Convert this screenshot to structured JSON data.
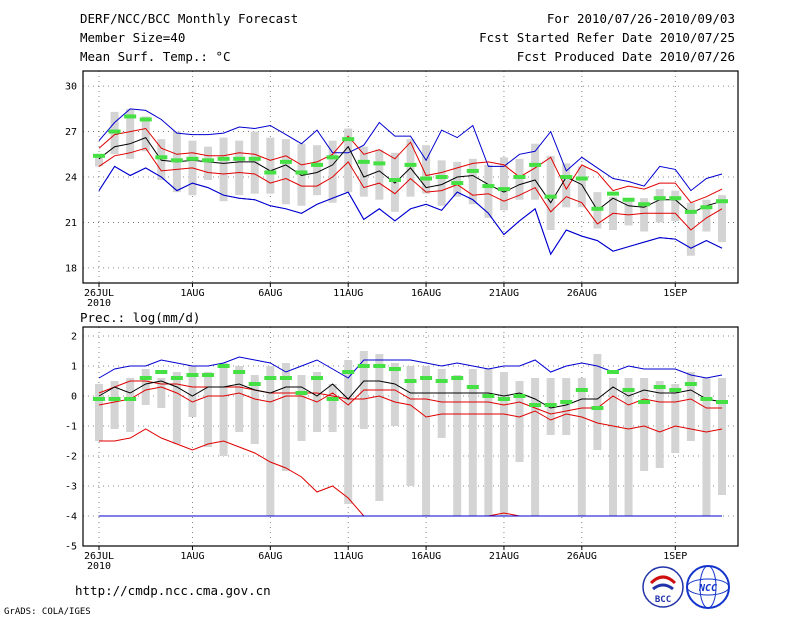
{
  "header": {
    "title": "DERF/NCC/BCC Monthly Forecast",
    "member_size": "Member Size=40",
    "variable": "Mean Surf. Temp.: °C",
    "period": "For 2010/07/26-2010/09/03",
    "fcst_started": "Fcst Started Refer Date 2010/07/25",
    "fcst_produced": "Fcst Produced Date 2010/07/26"
  },
  "footer": {
    "url": "http://cmdp.ncc.cma.gov.cn",
    "credit": "GrADS: COLA/IGES",
    "logo_bcc": "BCC",
    "logo_ncc": "NCC"
  },
  "colors": {
    "mean": "#000000",
    "inner_band": "#e00000",
    "outer_band": "#0000d0",
    "observed_marker": "#44e044",
    "box": "#d4d4d4"
  },
  "chart_data": [
    {
      "type": "line",
      "title": "Mean Surf. Temp.: °C",
      "ylim": [
        17,
        31
      ],
      "yticks": [
        18,
        21,
        24,
        27,
        30
      ],
      "x_days": 40,
      "xtick_labels": [
        {
          "day": 0,
          "label": "26JUL",
          "sub": "2010"
        },
        {
          "day": 6,
          "label": "1AUG"
        },
        {
          "day": 11,
          "label": "6AUG"
        },
        {
          "day": 16,
          "label": "11AUG"
        },
        {
          "day": 21,
          "label": "16AUG"
        },
        {
          "day": 26,
          "label": "21AUG"
        },
        {
          "day": 31,
          "label": "26AUG"
        },
        {
          "day": 37,
          "label": "1SEP"
        }
      ],
      "series": [
        {
          "name": "max",
          "values": [
            23.1,
            24.7,
            24.1,
            24.6,
            24.0,
            23.1,
            23.6,
            23.3,
            22.8,
            22.6,
            22.5,
            22.1,
            21.9,
            21.6,
            22.2,
            22.6,
            23.0,
            21.2,
            21.9,
            21.1,
            21.9,
            22.2,
            21.8,
            23.0,
            22.5,
            21.6,
            20.2,
            21.1,
            21.9,
            18.9,
            20.5,
            20.1,
            19.8,
            19.1,
            19.4,
            19.7,
            20.0,
            19.9,
            19.3,
            19.8,
            19.3
          ]
        },
        {
          "name": "q-high",
          "values": [
            26.4,
            27.6,
            28.5,
            28.4,
            27.8,
            26.9,
            26.8,
            26.8,
            26.9,
            27.3,
            27.2,
            27.4,
            26.8,
            26.2,
            27.1,
            25.6,
            25.6,
            26.1,
            27.6,
            26.7,
            26.7,
            25.1,
            27.1,
            26.6,
            27.4,
            24.7,
            24.7,
            25.5,
            25.7,
            27.0,
            24.4,
            25.3,
            24.6,
            23.9,
            23.7,
            23.4,
            24.7,
            24.5,
            23.1,
            23.9,
            24.2
          ]
        },
        {
          "name": "p-high",
          "values": [
            25.9,
            26.8,
            27.0,
            27.2,
            25.9,
            25.5,
            25.6,
            25.4,
            25.4,
            25.6,
            25.5,
            25.1,
            25.4,
            24.8,
            25.0,
            25.5,
            26.7,
            25.5,
            25.8,
            25.2,
            26.3,
            24.1,
            24.3,
            24.6,
            24.9,
            25.0,
            24.8,
            24.0,
            24.6,
            25.3,
            23.2,
            24.8,
            24.3,
            23.1,
            23.4,
            23.2,
            23.6,
            23.6,
            22.3,
            22.7,
            23.2
          ]
        },
        {
          "name": "mean",
          "values": [
            25.2,
            26.0,
            26.2,
            26.6,
            25.1,
            25.0,
            25.1,
            25.0,
            24.9,
            25.0,
            25.0,
            24.4,
            24.8,
            24.1,
            24.3,
            24.8,
            26.0,
            24.0,
            24.4,
            23.6,
            24.6,
            23.3,
            23.5,
            24.0,
            24.1,
            23.5,
            23.0,
            23.5,
            23.8,
            22.3,
            24.0,
            23.5,
            21.8,
            22.6,
            22.1,
            22.0,
            22.5,
            22.5,
            21.6,
            22.1,
            22.4
          ]
        },
        {
          "name": "p-low",
          "values": [
            24.7,
            25.4,
            25.6,
            25.9,
            24.4,
            24.5,
            24.6,
            24.3,
            24.2,
            24.3,
            24.2,
            23.6,
            23.9,
            23.4,
            23.4,
            24.0,
            25.0,
            23.3,
            23.6,
            22.9,
            23.9,
            23.0,
            23.1,
            23.5,
            22.8,
            22.9,
            22.4,
            22.8,
            23.3,
            21.7,
            22.7,
            22.3,
            20.9,
            21.6,
            21.5,
            21.6,
            21.6,
            21.6,
            20.5,
            21.3,
            21.9
          ]
        },
        {
          "name": "min",
          "values": [
            23.1,
            24.7,
            24.1,
            24.6,
            24.0,
            23.1,
            23.6,
            23.3,
            22.8,
            22.6,
            22.5,
            22.1,
            21.9,
            21.6,
            22.2,
            22.6,
            23.0,
            21.2,
            21.9,
            21.1,
            21.9,
            22.2,
            21.8,
            23.0,
            22.5,
            21.6,
            20.2,
            21.1,
            21.9,
            18.9,
            20.5,
            20.1,
            19.8,
            19.1,
            19.4,
            19.7,
            20.0,
            19.9,
            19.3,
            19.8,
            19.3
          ]
        }
      ],
      "boxes": [
        [
          24.7,
          25.3
        ],
        [
          25.5,
          28.3
        ],
        [
          25.2,
          28.5
        ],
        [
          25.7,
          28.0
        ],
        [
          23.8,
          26.5
        ],
        [
          23.0,
          27.0
        ],
        [
          22.8,
          26.4
        ],
        [
          23.8,
          26.0
        ],
        [
          22.4,
          26.6
        ],
        [
          22.8,
          26.4
        ],
        [
          22.9,
          27.0
        ],
        [
          22.9,
          26.6
        ],
        [
          22.2,
          26.5
        ],
        [
          22.1,
          26.2
        ],
        [
          22.8,
          26.1
        ],
        [
          22.3,
          26.4
        ],
        [
          23.0,
          27.2
        ],
        [
          22.7,
          26.0
        ],
        [
          22.5,
          25.8
        ],
        [
          21.7,
          25.6
        ],
        [
          22.7,
          26.5
        ],
        [
          22.9,
          26.1
        ],
        [
          22.1,
          25.1
        ],
        [
          22.7,
          25.0
        ],
        [
          22.2,
          25.2
        ],
        [
          21.3,
          24.8
        ],
        [
          21.8,
          25.3
        ],
        [
          22.5,
          25.2
        ],
        [
          22.5,
          26.2
        ],
        [
          20.5,
          25.4
        ],
        [
          22.0,
          24.9
        ],
        [
          22.0,
          24.7
        ],
        [
          20.6,
          23.0
        ],
        [
          20.5,
          22.7
        ],
        [
          20.8,
          22.6
        ],
        [
          20.4,
          22.6
        ],
        [
          21.0,
          23.2
        ],
        [
          21.1,
          23.1
        ],
        [
          18.8,
          22.3
        ],
        [
          20.4,
          22.5
        ],
        [
          19.7,
          22.8
        ]
      ],
      "observed": [
        25.4,
        27.0,
        28.0,
        27.8,
        25.3,
        25.1,
        25.2,
        25.1,
        25.2,
        25.2,
        25.2,
        24.3,
        25.0,
        24.3,
        24.8,
        25.3,
        26.5,
        25.0,
        24.9,
        23.8,
        24.8,
        23.9,
        24.0,
        23.6,
        24.4,
        23.4,
        23.2,
        24.0,
        24.8,
        22.7,
        24.0,
        23.9,
        21.9,
        22.9,
        22.5,
        22.2,
        22.6,
        22.6,
        21.7,
        22.0,
        22.4
      ]
    },
    {
      "type": "line",
      "title": "Prec.: log(mm/d)",
      "ylim": [
        -5,
        2.3
      ],
      "yticks": [
        -5,
        -4,
        -3,
        -2,
        -1,
        0,
        1,
        2
      ],
      "x_days": 40,
      "xtick_labels": [
        {
          "day": 0,
          "label": "26JUL",
          "sub": "2010"
        },
        {
          "day": 6,
          "label": "1AUG"
        },
        {
          "day": 11,
          "label": "6AUG"
        },
        {
          "day": 16,
          "label": "11AUG"
        },
        {
          "day": 21,
          "label": "16AUG"
        },
        {
          "day": 26,
          "label": "21AUG"
        },
        {
          "day": 31,
          "label": "26AUG"
        },
        {
          "day": 37,
          "label": "1SEP"
        }
      ],
      "series": [
        {
          "name": "max",
          "values": [
            0.6,
            0.9,
            1.0,
            1.0,
            1.2,
            1.1,
            1.0,
            1.0,
            1.1,
            1.3,
            1.2,
            1.1,
            0.8,
            1.0,
            1.2,
            0.9,
            0.6,
            1.2,
            1.2,
            1.2,
            1.2,
            1.1,
            1.0,
            1.1,
            1.0,
            0.9,
            1.0,
            1.0,
            1.2,
            0.8,
            1.0,
            1.1,
            1.0,
            0.8,
            1.0,
            0.9,
            0.9,
            0.9,
            0.7,
            0.6,
            0.7
          ]
        },
        {
          "name": "p-high",
          "values": [
            0.1,
            0.3,
            0.5,
            0.5,
            0.4,
            0.4,
            0.3,
            0.3,
            0.3,
            0.3,
            0.2,
            0.1,
            0.1,
            0.1,
            0.1,
            0.0,
            -0.1,
            -0.1,
            0.0,
            -0.2,
            -0.3,
            -0.7,
            -0.6,
            -0.6,
            -0.6,
            -0.6,
            -0.6,
            -0.7,
            -0.5,
            -0.8,
            -0.6,
            -0.7,
            -0.9,
            -1.0,
            -1.1,
            -1.0,
            -1.2,
            -1.0,
            -1.1,
            -1.2,
            -1.1
          ]
        },
        {
          "name": "mean",
          "values": [
            0.0,
            0.3,
            0.1,
            0.4,
            0.5,
            0.3,
            0.0,
            0.3,
            0.3,
            0.4,
            0.2,
            0.1,
            0.3,
            0.3,
            0.0,
            0.4,
            -0.1,
            0.5,
            0.5,
            0.4,
            0.1,
            0.1,
            0.1,
            0.1,
            0.1,
            0.1,
            0.0,
            0.1,
            -0.1,
            -0.4,
            -0.3,
            -0.1,
            -0.1,
            0.3,
            0.0,
            0.2,
            0.1,
            0.1,
            0.2,
            -0.1,
            -0.2
          ]
        },
        {
          "name": "p-low",
          "values": [
            -0.3,
            -0.2,
            -0.1,
            0.2,
            0.3,
            0.1,
            -0.2,
            0.0,
            0.0,
            0.1,
            -0.1,
            -0.2,
            0.0,
            0.0,
            -0.2,
            0.1,
            -0.3,
            0.2,
            0.2,
            0.2,
            -0.1,
            -0.1,
            -0.2,
            -0.2,
            -0.2,
            -0.2,
            -0.3,
            -0.2,
            -0.4,
            -0.6,
            -0.5,
            -0.4,
            -0.4,
            0.0,
            -0.3,
            -0.1,
            -0.2,
            -0.2,
            -0.1,
            -0.4,
            -0.4
          ]
        },
        {
          "name": "red-low",
          "values": [
            -1.5,
            -1.5,
            -1.4,
            -1.1,
            -1.4,
            -1.6,
            -1.8,
            -1.6,
            -1.5,
            -1.7,
            -1.9,
            -2.2,
            -2.4,
            -2.7,
            -3.2,
            -3.0,
            -3.4,
            -4.0,
            -4.0,
            -4.0,
            -4.0,
            -4.0,
            -4.0,
            -4.0,
            -4.0,
            -4.0,
            -3.9,
            -4.0,
            -4.0,
            -4.0,
            -4.0,
            -4.0,
            -4.0,
            -4.0,
            -4.0,
            -4.0,
            -4.0,
            -4.0,
            -4.0,
            -4.0,
            -4.0
          ]
        },
        {
          "name": "min",
          "values": [
            -4.0,
            -4.0,
            -4.0,
            -4.0,
            -4.0,
            -4.0,
            -4.0,
            -4.0,
            -4.0,
            -4.0,
            -4.0,
            -4.0,
            -4.0,
            -4.0,
            -4.0,
            -4.0,
            -4.0,
            -4.0,
            -4.0,
            -4.0,
            -4.0,
            -4.0,
            -4.0,
            -4.0,
            -4.0,
            -4.0,
            -4.0,
            -4.0,
            -4.0,
            -4.0,
            -4.0,
            -4.0,
            -4.0,
            -4.0,
            -4.0,
            -4.0,
            -4.0,
            -4.0,
            -4.0,
            -4.0,
            -4.0
          ]
        }
      ],
      "boxes": [
        [
          -1.5,
          0.4
        ],
        [
          -1.1,
          0.5
        ],
        [
          -1.2,
          0.6
        ],
        [
          -0.3,
          0.9
        ],
        [
          -0.4,
          0.6
        ],
        [
          -1.6,
          0.8
        ],
        [
          -0.7,
          1.0
        ],
        [
          -1.7,
          0.8
        ],
        [
          -2.0,
          1.1
        ],
        [
          -1.2,
          1.0
        ],
        [
          -1.6,
          0.7
        ],
        [
          -4.0,
          1.0
        ],
        [
          -2.5,
          1.1
        ],
        [
          -1.5,
          0.7
        ],
        [
          -1.2,
          0.8
        ],
        [
          -1.2,
          0.4
        ],
        [
          -3.6,
          1.2
        ],
        [
          -1.1,
          1.5
        ],
        [
          -3.5,
          1.4
        ],
        [
          -1.0,
          1.1
        ],
        [
          -3.0,
          1.0
        ],
        [
          -4.0,
          1.0
        ],
        [
          -1.4,
          0.9
        ],
        [
          -4.0,
          0.7
        ],
        [
          -4.0,
          0.9
        ],
        [
          -4.0,
          0.9
        ],
        [
          -4.0,
          0.8
        ],
        [
          -2.2,
          0.5
        ],
        [
          -4.0,
          0.6
        ],
        [
          -1.3,
          0.6
        ],
        [
          -1.3,
          0.6
        ],
        [
          -4.0,
          0.6
        ],
        [
          -1.8,
          1.4
        ],
        [
          -4.0,
          0.6
        ],
        [
          -4.0,
          0.6
        ],
        [
          -2.5,
          0.6
        ],
        [
          -2.4,
          0.5
        ],
        [
          -1.9,
          0.4
        ],
        [
          -1.5,
          0.8
        ],
        [
          -4.0,
          0.6
        ],
        [
          -3.3,
          0.6
        ]
      ],
      "observed": [
        -0.1,
        -0.1,
        -0.1,
        0.6,
        0.8,
        0.6,
        0.7,
        0.7,
        1.0,
        0.8,
        0.4,
        0.6,
        0.6,
        0.1,
        0.6,
        -0.1,
        0.8,
        1.0,
        1.0,
        0.9,
        0.5,
        0.6,
        0.5,
        0.6,
        0.3,
        0.0,
        -0.1,
        0.0,
        -0.3,
        -0.3,
        -0.2,
        0.2,
        -0.4,
        0.8,
        0.2,
        -0.2,
        0.3,
        0.2,
        0.4,
        -0.1,
        -0.2
      ]
    }
  ]
}
